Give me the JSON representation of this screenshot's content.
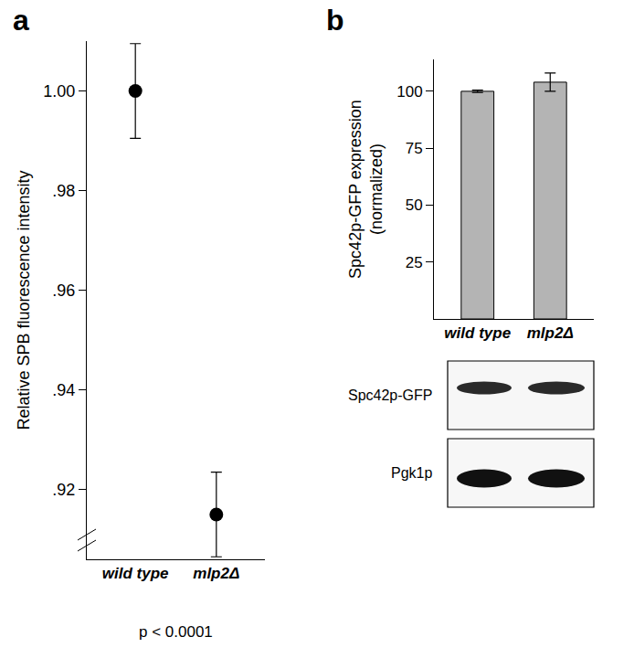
{
  "chart_data": [
    {
      "type": "scatter",
      "title": "a",
      "categories": [
        "wild type",
        "mlp2Δ"
      ],
      "values": [
        1.0,
        0.915
      ],
      "errors": [
        0.0095,
        0.0085
      ],
      "color": "#000000",
      "y_label": "Relative SPB fluorescence intensity",
      "ylim": [
        0.906,
        1.01
      ],
      "yticks": [
        {
          "value": 0.92,
          "label": ".92"
        },
        {
          "value": 0.94,
          "label": ".94"
        },
        {
          "value": 0.96,
          "label": ".96"
        },
        {
          "value": 0.98,
          "label": ".98"
        },
        {
          "value": 1.0,
          "label": "1.00"
        }
      ],
      "annotations": [
        "p < 0.0001"
      ],
      "grid": false
    },
    {
      "type": "bar",
      "title": "b",
      "categories": [
        "wild type",
        "mlp2Δ"
      ],
      "values": [
        100,
        104
      ],
      "errors": [
        0.5,
        4
      ],
      "color": "#b4b4b4",
      "y_label": "Spc42p-GFP expression\n(normalized)",
      "ylim": [
        0,
        114
      ],
      "yticks": [
        25,
        50,
        75,
        100
      ],
      "grid": false
    }
  ],
  "blot": {
    "rows": [
      "Spc42p-GFP",
      "Pgk1p"
    ]
  }
}
